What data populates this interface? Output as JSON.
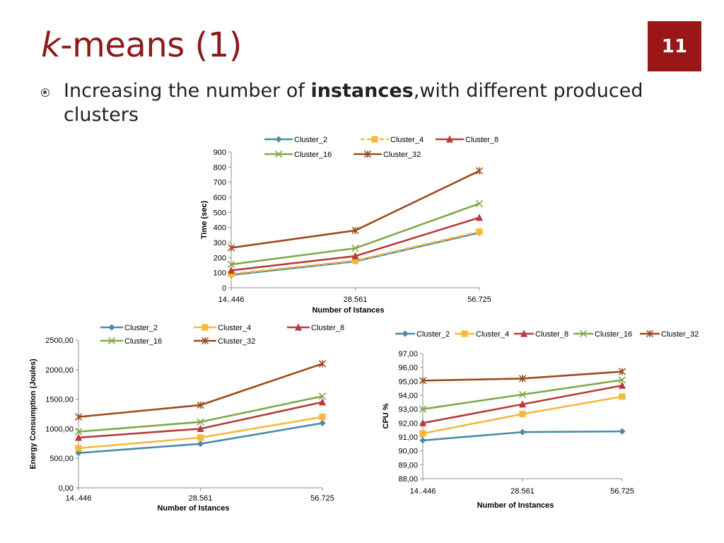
{
  "slide": {
    "title_k": "k",
    "title_rest": "-means (1)",
    "page_number": "11",
    "bullet_pre": "Increasing the number of ",
    "bullet_bold": "instances",
    "bullet_post": ",with different produced clusters"
  },
  "chart_data": [
    {
      "id": "time",
      "type": "line",
      "title": "",
      "xlabel": "Number of Istances",
      "ylabel": "Time (sec)",
      "categories": [
        "14..446",
        "28.561",
        "56.725"
      ],
      "ylim": [
        0,
        900
      ],
      "yticks": [
        0,
        100,
        200,
        300,
        400,
        500,
        600,
        700,
        800,
        900
      ],
      "ytick_labels": [
        "0",
        "100",
        "200",
        "300",
        "400",
        "500",
        "600",
        "700",
        "800",
        "900"
      ],
      "grid": false,
      "legend_position": "top",
      "series": [
        {
          "name": "Cluster_2",
          "color": "#4a8ba6",
          "marker": "diamond",
          "dashed": false,
          "values": [
            85,
            175,
            365
          ]
        },
        {
          "name": "Cluster_4",
          "color": "#f6b93b",
          "marker": "square",
          "dashed": true,
          "values": [
            92,
            180,
            372
          ]
        },
        {
          "name": "Cluster_8",
          "color": "#b83b3b",
          "marker": "triangle",
          "dashed": false,
          "values": [
            115,
            210,
            465
          ]
        },
        {
          "name": "Cluster_16",
          "color": "#7fa84a",
          "marker": "x",
          "dashed": false,
          "values": [
            155,
            262,
            558
          ]
        },
        {
          "name": "Cluster_32",
          "color": "#9c4a1e",
          "marker": "star",
          "dashed": false,
          "values": [
            265,
            380,
            775
          ]
        }
      ]
    },
    {
      "id": "energy",
      "type": "line",
      "title": "",
      "xlabel": "Number of Istances",
      "ylabel": "Energy Consumption (Joules)",
      "categories": [
        "14..446",
        "28.561",
        "56.725"
      ],
      "ylim": [
        0,
        2500
      ],
      "yticks": [
        0,
        500,
        1000,
        1500,
        2000,
        2500
      ],
      "ytick_labels": [
        "0,00",
        "500,00",
        "1000,00",
        "1500,00",
        "2000,00",
        "2500,00"
      ],
      "grid": false,
      "legend_position": "top",
      "series": [
        {
          "name": "Cluster_2",
          "color": "#4a8ba6",
          "marker": "diamond",
          "dashed": false,
          "values": [
            590,
            745,
            1095
          ]
        },
        {
          "name": "Cluster_4",
          "color": "#f6b93b",
          "marker": "square",
          "dashed": false,
          "values": [
            670,
            850,
            1200
          ]
        },
        {
          "name": "Cluster_8",
          "color": "#b83b3b",
          "marker": "triangle",
          "dashed": false,
          "values": [
            850,
            1000,
            1450
          ]
        },
        {
          "name": "Cluster_16",
          "color": "#7fa84a",
          "marker": "x",
          "dashed": false,
          "values": [
            950,
            1115,
            1550
          ]
        },
        {
          "name": "Cluster_32",
          "color": "#9c4a1e",
          "marker": "star",
          "dashed": false,
          "values": [
            1200,
            1400,
            2100
          ]
        }
      ]
    },
    {
      "id": "cpu",
      "type": "line",
      "title": "",
      "xlabel": "Number of Instances",
      "ylabel": "CPU %",
      "categories": [
        "14..446",
        "28.561",
        "56.725"
      ],
      "ylim": [
        88,
        97
      ],
      "yticks": [
        88,
        89,
        90,
        91,
        92,
        93,
        94,
        95,
        96,
        97
      ],
      "ytick_labels": [
        "88,00",
        "89,00",
        "90,00",
        "91,00",
        "92,00",
        "93,00",
        "94,00",
        "95,00",
        "96,00",
        "97,00"
      ],
      "grid": false,
      "legend_position": "top",
      "series": [
        {
          "name": "Cluster_2",
          "color": "#4a8ba6",
          "marker": "diamond",
          "dashed": false,
          "values": [
            90.75,
            91.35,
            91.4
          ]
        },
        {
          "name": "Cluster_4",
          "color": "#f6b93b",
          "marker": "square",
          "dashed": false,
          "values": [
            91.25,
            92.65,
            93.9
          ]
        },
        {
          "name": "Cluster_8",
          "color": "#b83b3b",
          "marker": "triangle",
          "dashed": false,
          "values": [
            92.0,
            93.35,
            94.7
          ]
        },
        {
          "name": "Cluster_16",
          "color": "#7fa84a",
          "marker": "x",
          "dashed": false,
          "values": [
            93.0,
            94.05,
            95.1
          ]
        },
        {
          "name": "Cluster_32",
          "color": "#9c4a1e",
          "marker": "star",
          "dashed": false,
          "values": [
            95.05,
            95.2,
            95.7
          ]
        }
      ]
    }
  ]
}
